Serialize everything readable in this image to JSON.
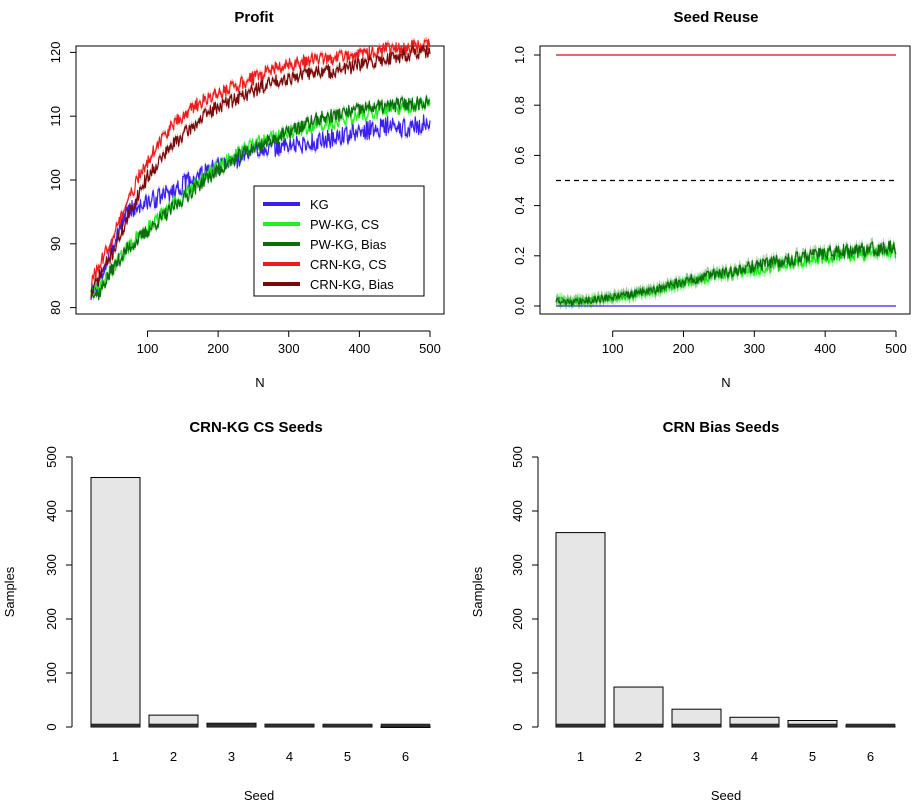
{
  "chart_data": [
    {
      "type": "line",
      "title": "Profit",
      "xlabel": "N",
      "ylabel": "",
      "xlim": [
        20,
        500
      ],
      "ylim": [
        79,
        121
      ],
      "xticks": [
        100,
        200,
        300,
        400,
        500
      ],
      "yticks": [
        80,
        90,
        100,
        110,
        120
      ],
      "grid": false,
      "legend_position": "bottom-right",
      "series": [
        {
          "name": "KG",
          "color": "#3a1ff0",
          "x": [
            20,
            30,
            40,
            50,
            60,
            70,
            80,
            90,
            100,
            120,
            140,
            160,
            180,
            200,
            220,
            240,
            260,
            280,
            300,
            320,
            340,
            360,
            380,
            400,
            420,
            440,
            460,
            480,
            500
          ],
          "y": [
            82,
            83.5,
            86.5,
            89.5,
            92.5,
            95,
            95.5,
            96,
            96.5,
            97.5,
            98.5,
            100,
            101,
            102,
            103,
            104,
            105,
            105,
            105.5,
            105.5,
            106,
            106.5,
            107,
            107.5,
            108,
            108.5,
            108,
            108.5,
            109
          ]
        },
        {
          "name": "PW-KG, CS",
          "color": "#22ee22",
          "x": [
            20,
            30,
            40,
            50,
            60,
            70,
            80,
            90,
            100,
            120,
            140,
            160,
            180,
            200,
            220,
            240,
            260,
            280,
            300,
            320,
            340,
            360,
            380,
            400,
            420,
            440,
            460,
            480,
            500
          ],
          "y": [
            83,
            82.5,
            84.5,
            86,
            87.5,
            89,
            90.5,
            91.5,
            92.5,
            94.5,
            96.5,
            98.5,
            100.5,
            102,
            103.5,
            105,
            106,
            107,
            107.5,
            108,
            108.5,
            109,
            109.5,
            110,
            110.5,
            111,
            111,
            111.5,
            112
          ]
        },
        {
          "name": "PW-KG, Bias",
          "color": "#0a6e0a",
          "x": [
            20,
            30,
            40,
            50,
            60,
            70,
            80,
            90,
            100,
            120,
            140,
            160,
            180,
            200,
            220,
            240,
            260,
            280,
            300,
            320,
            340,
            360,
            380,
            400,
            420,
            440,
            460,
            480,
            500
          ],
          "y": [
            83,
            82,
            84,
            86,
            87.5,
            89,
            90,
            91,
            92,
            94,
            96,
            98,
            100,
            101.5,
            103,
            104.5,
            105.5,
            106.5,
            107.5,
            108.5,
            109.5,
            110,
            110.5,
            111,
            111.5,
            111.5,
            112,
            112,
            112.5
          ]
        },
        {
          "name": "CRN-KG, CS",
          "color": "#ee1c1c",
          "x": [
            20,
            30,
            40,
            50,
            60,
            70,
            80,
            90,
            100,
            120,
            140,
            160,
            180,
            200,
            220,
            240,
            260,
            280,
            300,
            320,
            340,
            360,
            380,
            400,
            420,
            440,
            460,
            480,
            500
          ],
          "y": [
            84,
            86,
            88.5,
            91,
            93.5,
            96,
            98.5,
            101,
            103,
            106.5,
            109,
            111,
            112.5,
            113.5,
            114.5,
            115.5,
            116.5,
            117.5,
            118,
            118.5,
            119,
            119,
            119.5,
            119.5,
            120,
            120.5,
            120.5,
            121,
            121
          ]
        },
        {
          "name": "CRN-KG, Bias",
          "color": "#7a0a0a",
          "x": [
            20,
            30,
            40,
            50,
            60,
            70,
            80,
            90,
            100,
            120,
            140,
            160,
            180,
            200,
            220,
            240,
            260,
            280,
            300,
            320,
            340,
            360,
            380,
            400,
            420,
            440,
            460,
            480,
            500
          ],
          "y": [
            82,
            84.5,
            86.5,
            88.5,
            91,
            93.5,
            96,
            98.5,
            100.5,
            103.5,
            106,
            108,
            110,
            111.5,
            112.5,
            113.5,
            114.5,
            115.5,
            116,
            116.5,
            117,
            117,
            117.5,
            118,
            118.5,
            119,
            119.5,
            120,
            120
          ]
        }
      ]
    },
    {
      "type": "line",
      "title": "Seed Reuse",
      "xlabel": "N",
      "ylabel": "",
      "xlim": [
        20,
        500
      ],
      "ylim": [
        0,
        1
      ],
      "xticks": [
        100,
        200,
        300,
        400,
        500
      ],
      "yticks": [
        "0.0",
        "0.2",
        "0.4",
        "0.6",
        "0.8",
        "1.0"
      ],
      "grid": false,
      "series": [
        {
          "color": "#cc1010",
          "x": [
            20,
            500
          ],
          "y": [
            1.0,
            1.0
          ]
        },
        {
          "color": "#000000",
          "dash": true,
          "x": [
            20,
            500
          ],
          "y": [
            0.5,
            0.5
          ]
        },
        {
          "color": "#3a1ff0",
          "x": [
            20,
            500
          ],
          "y": [
            0.0,
            0.0
          ]
        },
        {
          "color": "#22ee22",
          "x": [
            20,
            40,
            60,
            80,
            100,
            120,
            140,
            160,
            180,
            200,
            220,
            240,
            260,
            280,
            300,
            320,
            340,
            360,
            380,
            400,
            420,
            440,
            460,
            480,
            500
          ],
          "y": [
            0.03,
            0.02,
            0.025,
            0.03,
            0.035,
            0.04,
            0.05,
            0.06,
            0.075,
            0.09,
            0.1,
            0.115,
            0.125,
            0.135,
            0.145,
            0.155,
            0.165,
            0.175,
            0.185,
            0.195,
            0.2,
            0.205,
            0.21,
            0.215,
            0.22
          ]
        },
        {
          "color": "#0a6e0a",
          "x": [
            20,
            40,
            60,
            80,
            100,
            120,
            140,
            160,
            180,
            200,
            220,
            240,
            260,
            280,
            300,
            320,
            340,
            360,
            380,
            400,
            420,
            440,
            460,
            480,
            500
          ],
          "y": [
            0.02,
            0.015,
            0.02,
            0.028,
            0.035,
            0.045,
            0.055,
            0.065,
            0.08,
            0.1,
            0.11,
            0.125,
            0.135,
            0.145,
            0.16,
            0.17,
            0.18,
            0.19,
            0.2,
            0.21,
            0.215,
            0.22,
            0.225,
            0.23,
            0.235
          ]
        }
      ]
    },
    {
      "type": "bar",
      "title": "CRN-KG CS Seeds",
      "xlabel": "Seed",
      "ylabel": "Samples",
      "ylim": [
        0,
        500
      ],
      "yticks": [
        0,
        100,
        200,
        300,
        400,
        500
      ],
      "categories": [
        "1",
        "2",
        "3",
        "4",
        "5",
        "6"
      ],
      "values": [
        462,
        22,
        7,
        5,
        4,
        1
      ]
    },
    {
      "type": "bar",
      "title": "CRN Bias Seeds",
      "xlabel": "Seed",
      "ylabel": "Samples",
      "ylim": [
        0,
        500
      ],
      "yticks": [
        0,
        100,
        200,
        300,
        400,
        500
      ],
      "categories": [
        "1",
        "2",
        "3",
        "4",
        "5",
        "6"
      ],
      "values": [
        360,
        74,
        33,
        18,
        12,
        2
      ]
    }
  ]
}
